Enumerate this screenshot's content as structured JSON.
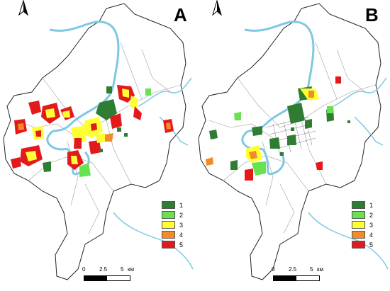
{
  "panels": [
    {
      "id": "A",
      "letter": "A"
    },
    {
      "id": "B",
      "letter": "B"
    }
  ],
  "legend": {
    "items": [
      {
        "label": "1",
        "color": "#2e7d32"
      },
      {
        "label": "2",
        "color": "#66e34f"
      },
      {
        "label": "3",
        "color": "#ffff33"
      },
      {
        "label": "4",
        "color": "#f28c28"
      },
      {
        "label": "5",
        "color": "#e31a1c"
      }
    ]
  },
  "scale": {
    "ticks": [
      "0",
      "2.5",
      "5"
    ],
    "unit": "км"
  },
  "colors": {
    "river": "#7ec8e3",
    "boundary": "#222222",
    "roads": "#9e9e9e"
  },
  "icons": [
    "north-arrow-icon"
  ]
}
